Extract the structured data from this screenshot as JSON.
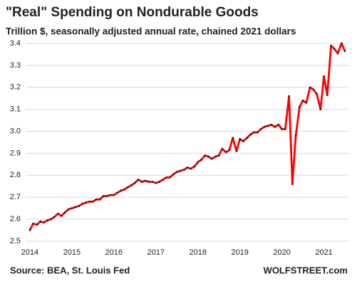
{
  "chart_data": {
    "type": "line",
    "title": "\"Real\" Spending on Nondurable Goods",
    "subtitle": "Trillion $, seasonally adjusted annual rate, chained 2021 dollars",
    "source": "Source: BEA, St. Louis Fed",
    "brand": "WOLFSTREET.com",
    "color": "#ff0000",
    "marker_color": "#222222",
    "grid": true,
    "x": [
      2014.0,
      2014.08,
      2014.17,
      2014.25,
      2014.33,
      2014.42,
      2014.5,
      2014.58,
      2014.67,
      2014.75,
      2014.83,
      2014.92,
      2015.0,
      2015.08,
      2015.17,
      2015.25,
      2015.33,
      2015.42,
      2015.5,
      2015.58,
      2015.67,
      2015.75,
      2015.83,
      2015.92,
      2016.0,
      2016.08,
      2016.17,
      2016.25,
      2016.33,
      2016.42,
      2016.5,
      2016.58,
      2016.67,
      2016.75,
      2016.83,
      2016.92,
      2017.0,
      2017.08,
      2017.17,
      2017.25,
      2017.33,
      2017.42,
      2017.5,
      2017.58,
      2017.67,
      2017.75,
      2017.83,
      2017.92,
      2018.0,
      2018.08,
      2018.17,
      2018.25,
      2018.33,
      2018.42,
      2018.5,
      2018.58,
      2018.67,
      2018.75,
      2018.83,
      2018.92,
      2019.0,
      2019.08,
      2019.17,
      2019.25,
      2019.33,
      2019.42,
      2019.5,
      2019.58,
      2019.67,
      2019.75,
      2019.83,
      2019.92,
      2020.0,
      2020.08,
      2020.17,
      2020.25,
      2020.33,
      2020.42,
      2020.5,
      2020.58,
      2020.67,
      2020.75,
      2020.83,
      2020.92,
      2021.0,
      2021.08,
      2021.17,
      2021.25,
      2021.33,
      2021.42,
      2021.5
    ],
    "values": [
      2.55,
      2.58,
      2.575,
      2.59,
      2.585,
      2.595,
      2.6,
      2.61,
      2.625,
      2.615,
      2.63,
      2.645,
      2.65,
      2.655,
      2.66,
      2.67,
      2.675,
      2.68,
      2.68,
      2.69,
      2.69,
      2.705,
      2.705,
      2.71,
      2.71,
      2.72,
      2.73,
      2.735,
      2.745,
      2.755,
      2.765,
      2.78,
      2.77,
      2.775,
      2.77,
      2.77,
      2.765,
      2.77,
      2.78,
      2.79,
      2.79,
      2.805,
      2.815,
      2.82,
      2.825,
      2.835,
      2.83,
      2.84,
      2.86,
      2.87,
      2.89,
      2.885,
      2.875,
      2.885,
      2.89,
      2.92,
      2.905,
      2.915,
      2.97,
      2.91,
      2.965,
      2.955,
      2.97,
      2.985,
      2.995,
      2.995,
      3.01,
      3.02,
      3.025,
      3.03,
      3.02,
      3.03,
      3.01,
      3.01,
      3.16,
      2.76,
      2.98,
      3.11,
      3.14,
      3.13,
      3.2,
      3.19,
      3.17,
      3.1,
      3.25,
      3.165,
      3.39,
      3.375,
      3.355,
      3.4,
      3.365
    ],
    "xlim": [
      2013.9,
      2021.55
    ],
    "xticks": [
      2014,
      2015,
      2016,
      2017,
      2018,
      2019,
      2020,
      2021
    ],
    "ylim": [
      2.5,
      3.4
    ],
    "yticks": [
      2.5,
      2.6,
      2.7,
      2.8,
      2.9,
      {
        "value": 3,
        "label": "3.0"
      },
      3.1,
      3.2,
      3.3,
      3.4
    ]
  }
}
